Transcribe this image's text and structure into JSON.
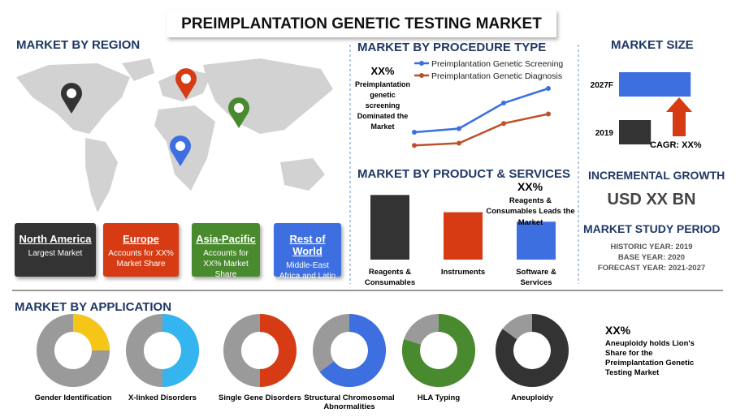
{
  "title": "PREIMPLANTATION GENETIC TESTING MARKET",
  "region": {
    "heading": "MARKET BY REGION",
    "cards": [
      {
        "name": "North America",
        "text": "Largest Market",
        "color": "#333333"
      },
      {
        "name": "Europe",
        "text": "Accounts for XX% Market Share",
        "color": "#d63b14"
      },
      {
        "name": "Asia-Pacific",
        "text": "Accounts for XX% Market Share",
        "color": "#4a8a2e"
      },
      {
        "name": "Rest of World",
        "text": "Middle-East Africa and Latin America",
        "color": "#3d6fe0"
      }
    ]
  },
  "procedure": {
    "heading": "MARKET BY PROCEDURE TYPE",
    "note_value": "XX%",
    "note": "Preimplantation genetic screening Dominated the Market",
    "chart_data": {
      "type": "line",
      "categories": [
        null,
        null,
        null,
        null
      ],
      "ylim": [
        0,
        100
      ],
      "series": [
        {
          "name": "Preimplantation Genetic Screening",
          "color": "#3a6fe0",
          "values": [
            30,
            35,
            70,
            90
          ]
        },
        {
          "name": "Preimplantation Genetic Diagnosis",
          "color": "#c0502a",
          "values": [
            12,
            15,
            42,
            55
          ]
        }
      ]
    }
  },
  "products": {
    "heading": "MARKET BY PRODUCT & SERVICES",
    "note_value": "XX%",
    "note": "Reagents & Consumables Leads the Market",
    "chart_data": {
      "type": "bar",
      "categories": [
        "Reagents & Consumables",
        "Instruments",
        "Software & Services"
      ],
      "values": [
        75,
        55,
        44
      ],
      "colors": [
        "#333333",
        "#d63b14",
        "#3d6fe0"
      ],
      "ylim": [
        0,
        80
      ]
    }
  },
  "size": {
    "heading": "MARKET SIZE",
    "cagr": "CAGR: XX%",
    "chart_data": {
      "type": "hbar",
      "categories": [
        "2027F",
        "2019"
      ],
      "values": [
        90,
        40
      ],
      "colors": [
        "#3d6fe0",
        "#333333"
      ],
      "xlim": [
        0,
        100
      ]
    }
  },
  "growth": {
    "heading": "INCREMENTAL GROWTH",
    "value": "USD XX BN"
  },
  "period": {
    "heading": "MARKET STUDY PERIOD",
    "lines": [
      "HISTORIC YEAR: 2019",
      "BASE YEAR: 2020",
      "FORECAST YEAR: 2021-2027"
    ]
  },
  "application": {
    "heading": "MARKET BY APPLICATION",
    "note_value": "XX%",
    "note": "Aneuploidy holds Lion's Share for the Preimplantation Genetic Testing Market",
    "chart_data": {
      "type": "donut",
      "ylim": [
        0,
        100
      ],
      "categories": [
        "Gender Identification",
        "X-linked Disorders",
        "Single Gene Disorders",
        "Structural Chromosomal Abnormalities",
        "HLA Typing",
        "Aneuploidy"
      ],
      "values": [
        25,
        50,
        50,
        65,
        80,
        85
      ],
      "colors": [
        "#f5c518",
        "#35b5f0",
        "#d63b14",
        "#3d6fe0",
        "#4a8a2e",
        "#333333"
      ]
    }
  }
}
